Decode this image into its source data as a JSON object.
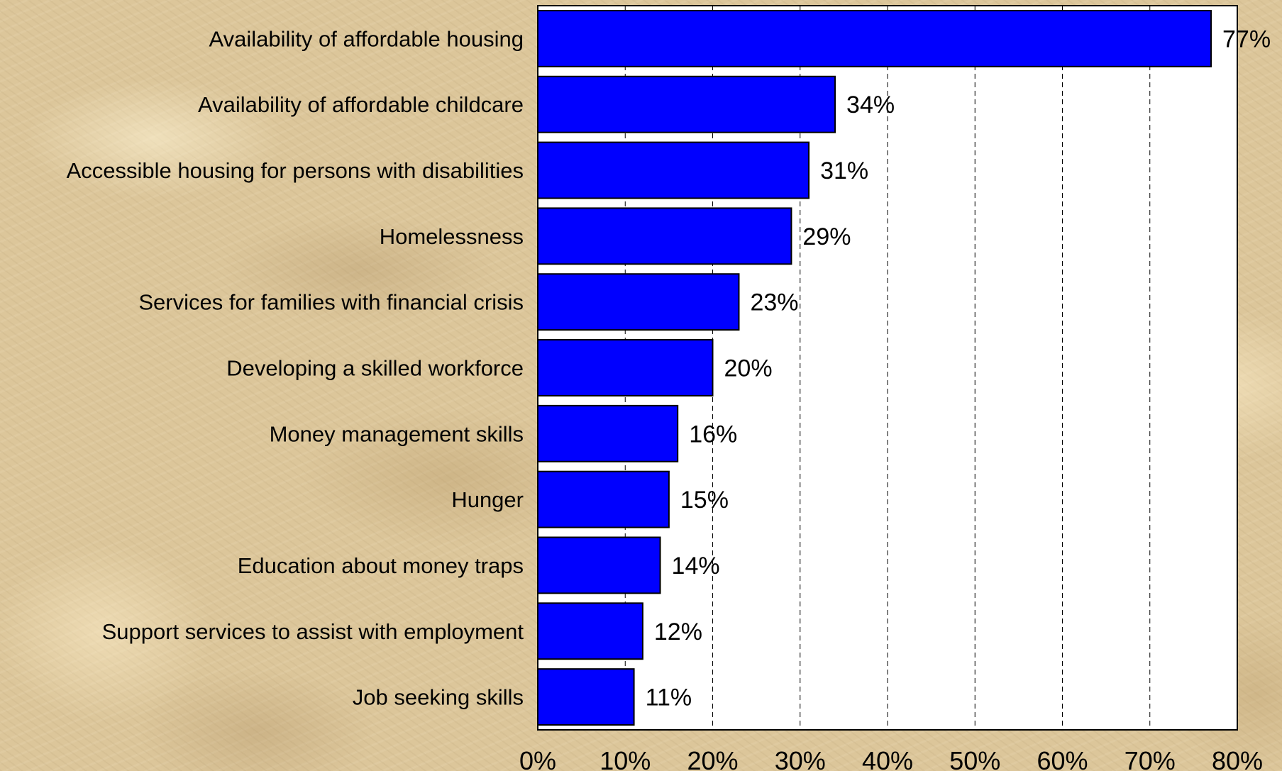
{
  "chart_data": {
    "type": "bar",
    "orientation": "horizontal",
    "categories": [
      "Availability of affordable housing",
      "Availability of affordable childcare",
      "Accessible housing for persons with disabilities",
      "Homelessness",
      "Services for families with financial crisis",
      "Developing a skilled workforce",
      "Money management skills",
      "Hunger",
      "Education about money traps",
      "Support services to assist with employment",
      "Job seeking skills"
    ],
    "values": [
      77,
      34,
      31,
      29,
      23,
      20,
      16,
      15,
      14,
      12,
      11
    ],
    "data_labels": [
      "77%",
      "34%",
      "31%",
      "29%",
      "23%",
      "20%",
      "16%",
      "15%",
      "14%",
      "12%",
      "11%"
    ],
    "x_ticks": [
      0,
      10,
      20,
      30,
      40,
      50,
      60,
      70,
      80
    ],
    "x_tick_labels": [
      "0%",
      "10%",
      "20%",
      "30%",
      "40%",
      "50%",
      "60%",
      "70%",
      "80%"
    ],
    "xlim": [
      0,
      80
    ],
    "grid": "vertical-dashed",
    "legend": "none",
    "bar_color": "#0000ff",
    "plot_background": "#ffffff"
  }
}
